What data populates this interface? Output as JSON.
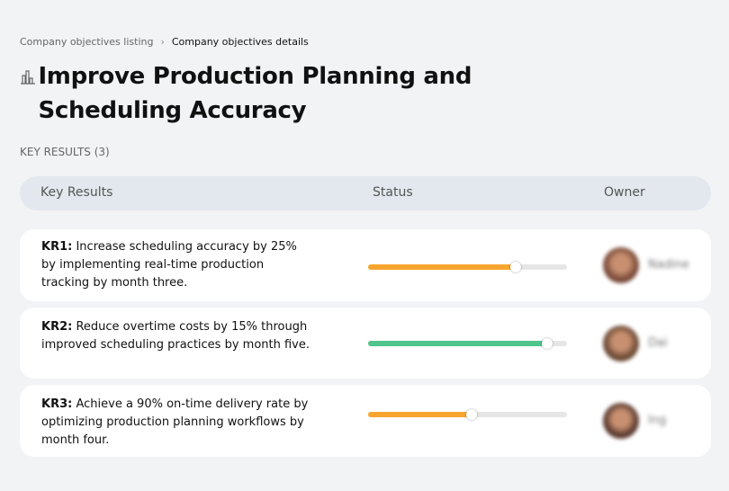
{
  "breadcrumb": {
    "parent": "Company objectives listing",
    "separator": "›",
    "current": "Company objectives details"
  },
  "title": "Improve Production Planning and Scheduling Accuracy",
  "title_icon": "building-chart-icon",
  "section_label": "KEY RESULTS (3)",
  "table": {
    "headers": [
      "Key Results",
      "Status",
      "Owner"
    ]
  },
  "key_results": [
    {
      "id": "KR1:",
      "text": " Increase scheduling accuracy by 25% by implementing real-time production tracking by month three.",
      "progress": 74,
      "color": "#f7a52f",
      "owner": "Nadine",
      "avatar": "#7a4a3a"
    },
    {
      "id": "KR2:",
      "text": " Reduce overtime costs by 15% through improved scheduling practices by month five.",
      "progress": 90,
      "color": "#4fc48b",
      "owner": "Dai",
      "avatar": "#6b4a35"
    },
    {
      "id": "KR3:",
      "text": " Achieve a 90% on-time delivery rate by optimizing production planning workflows by month four.",
      "progress": 52,
      "color": "#f7a52f",
      "owner": "Ing",
      "avatar": "#5a3a30"
    }
  ]
}
